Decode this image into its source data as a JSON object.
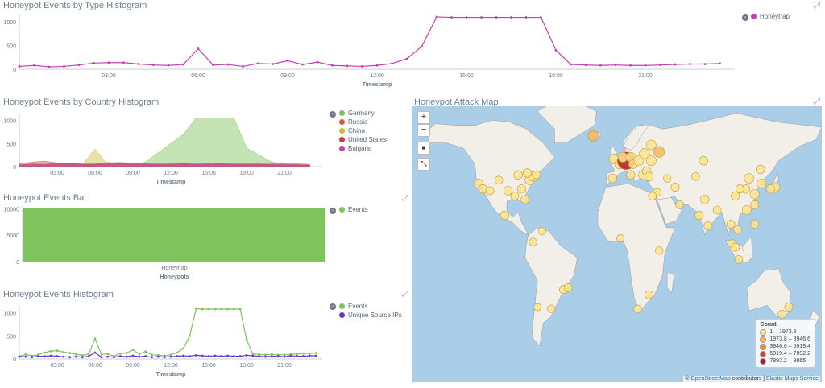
{
  "panels": {
    "type_histogram": {
      "title": "Honeypot Events by Type Histogram",
      "xlabel": "Timestamp",
      "legend": [
        {
          "label": "Honeytrap",
          "color": "#c341b1"
        }
      ]
    },
    "country_histogram": {
      "title": "Honeypot Events by Country Histogram",
      "xlabel": "Timestamp",
      "legend": [
        {
          "label": "Germany",
          "color": "#7fc35c"
        },
        {
          "label": "Russia",
          "color": "#c8633c"
        },
        {
          "label": "China",
          "color": "#c9be3c"
        },
        {
          "label": "United States",
          "color": "#c43c4a"
        },
        {
          "label": "Bulgaria",
          "color": "#c63fa6"
        }
      ]
    },
    "events_bar": {
      "title": "Honeypot Events Bar",
      "xlabel": "Honeypots",
      "category": "Honeytrap",
      "legend": [
        {
          "label": "Events",
          "color": "#7fc35c"
        }
      ]
    },
    "events_histogram": {
      "title": "Honeypot Events Histogram",
      "xlabel": "Timestamp",
      "legend": [
        {
          "label": "Events",
          "color": "#7fc35c"
        },
        {
          "label": "Unique Source IPs",
          "color": "#6b38c5"
        }
      ]
    },
    "attack_map": {
      "title": "Honeypot Attack Map",
      "controls": {
        "zoom_in": "+",
        "zoom_out": "−",
        "draw_rect": "■",
        "fit": "⤡"
      },
      "legend_title": "Count",
      "legend": [
        {
          "label": "1 – 1973.8",
          "color": "#fde58e"
        },
        {
          "label": "1973.8 – 3946.6",
          "color": "#f7b95b"
        },
        {
          "label": "3946.6 – 5919.4",
          "color": "#ef8a3b"
        },
        {
          "label": "5919.4 – 7892.2",
          "color": "#d9432a"
        },
        {
          "label": "7892.2 – 9865",
          "color": "#b01a1a"
        }
      ],
      "attribution": {
        "prefix": "©",
        "osm": "OpenStreetMap",
        "middle": " contributors | ",
        "ems": "Elastic Maps Service"
      }
    }
  },
  "chart_data": [
    {
      "type": "line",
      "title": "Honeypot Events by Type Histogram",
      "xlabel": "Timestamp",
      "ylabel": "",
      "xticks": [
        "03:00",
        "06:00",
        "09:00",
        "12:00",
        "15:00",
        "18:00",
        "21:00"
      ],
      "yticks": [
        0,
        500,
        1000
      ],
      "ylim": [
        0,
        1150
      ],
      "x_hours": [
        0,
        0.5,
        1,
        1.5,
        2,
        2.5,
        3,
        3.5,
        4,
        4.5,
        5,
        5.5,
        6,
        6.5,
        7,
        7.5,
        8,
        8.5,
        9,
        9.5,
        10,
        10.5,
        11,
        11.5,
        12,
        12.5,
        13,
        13.5,
        14,
        14.5,
        15,
        15.5,
        16,
        16.5,
        17,
        17.5,
        18,
        18.5,
        19,
        19.5,
        20,
        20.5,
        21,
        21.5,
        22,
        22.5,
        23,
        23.5
      ],
      "series": [
        {
          "name": "Honeytrap",
          "color": "#c341b1",
          "values": [
            60,
            80,
            50,
            60,
            90,
            130,
            140,
            140,
            110,
            90,
            80,
            100,
            430,
            90,
            100,
            60,
            120,
            110,
            180,
            100,
            150,
            80,
            70,
            60,
            80,
            120,
            220,
            480,
            1100,
            1090,
            1090,
            1090,
            1090,
            1090,
            1090,
            1090,
            400,
            100,
            90,
            80,
            90,
            80,
            80,
            90,
            100,
            110,
            110,
            120
          ]
        }
      ]
    },
    {
      "type": "area",
      "title": "Honeypot Events by Country Histogram",
      "xlabel": "Timestamp",
      "xticks": [
        "03:00",
        "06:00",
        "09:00",
        "12:00",
        "15:00",
        "18:00",
        "21:00"
      ],
      "yticks": [
        0,
        500,
        1000
      ],
      "ylim": [
        0,
        1150
      ],
      "x_hours": [
        0,
        1,
        2,
        3,
        4,
        5,
        6,
        7,
        8,
        9,
        10,
        11,
        12,
        13,
        14,
        15,
        16,
        17,
        18,
        19,
        20,
        21,
        22,
        23
      ],
      "series": [
        {
          "name": "Germany",
          "color": "#7fc35c",
          "values": [
            20,
            20,
            30,
            40,
            40,
            50,
            60,
            50,
            40,
            40,
            100,
            300,
            500,
            700,
            1050,
            1050,
            1050,
            1050,
            400,
            250,
            100,
            50,
            20,
            20
          ]
        },
        {
          "name": "Russia",
          "color": "#c8633c",
          "values": [
            60,
            100,
            120,
            80,
            60,
            70,
            60,
            80,
            90,
            70,
            80,
            60,
            50,
            60,
            70,
            80,
            60,
            70,
            60,
            50,
            60,
            70,
            60,
            50
          ]
        },
        {
          "name": "China",
          "color": "#c9be3c",
          "values": [
            10,
            10,
            10,
            10,
            20,
            40,
            380,
            30,
            20,
            20,
            10,
            10,
            10,
            10,
            10,
            10,
            10,
            10,
            10,
            10,
            10,
            10,
            10,
            10
          ]
        },
        {
          "name": "United States",
          "color": "#c43c4a",
          "values": [
            30,
            40,
            50,
            60,
            80,
            40,
            50,
            90,
            60,
            80,
            40,
            50,
            60,
            70,
            40,
            50,
            60,
            40,
            50,
            60,
            40,
            30,
            40,
            30
          ]
        },
        {
          "name": "Bulgaria",
          "color": "#c63fa6",
          "values": [
            40,
            60,
            50,
            70,
            60,
            50,
            40,
            60,
            70,
            50,
            60,
            40,
            30,
            40,
            50,
            60,
            40,
            50,
            40,
            30,
            40,
            50,
            40,
            30
          ]
        }
      ]
    },
    {
      "type": "bar",
      "title": "Honeypot Events Bar",
      "xlabel": "Honeypots",
      "categories": [
        "Honeytrap"
      ],
      "yticks": [
        0,
        5000,
        10000
      ],
      "ylim": [
        0,
        10500
      ],
      "series": [
        {
          "name": "Events",
          "color": "#7fc35c",
          "values": [
            10200
          ]
        }
      ]
    },
    {
      "type": "line",
      "title": "Honeypot Events Histogram",
      "xlabel": "Timestamp",
      "xticks": [
        "03:00",
        "06:00",
        "09:00",
        "12:00",
        "15:00",
        "18:00",
        "21:00"
      ],
      "yticks": [
        0,
        500,
        1000
      ],
      "ylim": [
        0,
        1150
      ],
      "x_hours": [
        0,
        0.5,
        1,
        1.5,
        2,
        2.5,
        3,
        3.5,
        4,
        4.5,
        5,
        5.5,
        6,
        6.5,
        7,
        7.5,
        8,
        8.5,
        9,
        9.5,
        10,
        10.5,
        11,
        11.5,
        12,
        12.5,
        13,
        13.5,
        14,
        14.5,
        15,
        15.5,
        16,
        16.5,
        17,
        17.5,
        18,
        18.5,
        19,
        19.5,
        20,
        20.5,
        21,
        21.5,
        22,
        22.5,
        23,
        23.5
      ],
      "series": [
        {
          "name": "Events",
          "color": "#7fc35c",
          "values": [
            60,
            100,
            70,
            90,
            140,
            170,
            180,
            150,
            130,
            100,
            80,
            110,
            440,
            100,
            110,
            60,
            120,
            130,
            200,
            110,
            160,
            90,
            80,
            70,
            90,
            140,
            230,
            500,
            1090,
            1080,
            1080,
            1080,
            1080,
            1080,
            1080,
            1080,
            420,
            110,
            100,
            90,
            100,
            90,
            90,
            100,
            110,
            120,
            120,
            130
          ]
        },
        {
          "name": "Unique Source IPs",
          "color": "#6b38c5",
          "values": [
            50,
            50,
            40,
            60,
            60,
            70,
            60,
            50,
            40,
            50,
            40,
            60,
            140,
            40,
            50,
            40,
            60,
            50,
            70,
            50,
            60,
            40,
            50,
            40,
            50,
            60,
            70,
            60,
            80,
            70,
            60,
            70,
            60,
            70,
            60,
            60,
            80,
            70,
            60,
            50,
            60,
            60,
            50,
            70,
            60,
            60,
            70,
            70
          ]
        }
      ]
    }
  ],
  "map_points": [
    {
      "lon": -122,
      "lat": 37,
      "count": 1200
    },
    {
      "lon": -118,
      "lat": 34,
      "count": 900
    },
    {
      "lon": -112,
      "lat": 33,
      "count": 700
    },
    {
      "lon": -104,
      "lat": 39,
      "count": 600
    },
    {
      "lon": -96,
      "lat": 33,
      "count": 900
    },
    {
      "lon": -90,
      "lat": 30,
      "count": 700
    },
    {
      "lon": -87,
      "lat": 42,
      "count": 900
    },
    {
      "lon": -84,
      "lat": 34,
      "count": 800
    },
    {
      "lon": -81,
      "lat": 28,
      "count": 600
    },
    {
      "lon": -77,
      "lat": 39,
      "count": 1100
    },
    {
      "lon": -74,
      "lat": 41,
      "count": 1100
    },
    {
      "lon": -71,
      "lat": 42,
      "count": 700
    },
    {
      "lon": -79,
      "lat": 43,
      "count": 800
    },
    {
      "lon": -99,
      "lat": 19,
      "count": 800
    },
    {
      "lon": -74,
      "lat": 4,
      "count": 500
    },
    {
      "lon": -66,
      "lat": 10,
      "count": 500
    },
    {
      "lon": -47,
      "lat": -23,
      "count": 800
    },
    {
      "lon": -43,
      "lat": -22,
      "count": 600
    },
    {
      "lon": -58,
      "lat": -34,
      "count": 500
    },
    {
      "lon": -70,
      "lat": -33,
      "count": 400
    },
    {
      "lon": -21,
      "lat": 64,
      "count": 2100
    },
    {
      "lon": -3,
      "lat": 51,
      "count": 1300
    },
    {
      "lon": 2,
      "lat": 48,
      "count": 1200
    },
    {
      "lon": 8,
      "lat": 50,
      "count": 9865
    },
    {
      "lon": 5,
      "lat": 52,
      "count": 1500
    },
    {
      "lon": 12,
      "lat": 52,
      "count": 1400
    },
    {
      "lon": 14,
      "lat": 48,
      "count": 900
    },
    {
      "lon": 19,
      "lat": 50,
      "count": 1600
    },
    {
      "lon": 24,
      "lat": 54,
      "count": 1700
    },
    {
      "lon": 30,
      "lat": 59,
      "count": 1400
    },
    {
      "lon": 37,
      "lat": 55,
      "count": 2100
    },
    {
      "lon": 30,
      "lat": 50,
      "count": 1500
    },
    {
      "lon": 23,
      "lat": 42,
      "count": 1400
    },
    {
      "lon": 26,
      "lat": 44,
      "count": 1000
    },
    {
      "lon": 28,
      "lat": 41,
      "count": 900
    },
    {
      "lon": -4,
      "lat": 40,
      "count": 900
    },
    {
      "lon": 12,
      "lat": 42,
      "count": 800
    },
    {
      "lon": 35,
      "lat": 32,
      "count": 600
    },
    {
      "lon": 44,
      "lat": 40,
      "count": 500
    },
    {
      "lon": 51,
      "lat": 35,
      "count": 700
    },
    {
      "lon": 55,
      "lat": 25,
      "count": 600
    },
    {
      "lon": 69,
      "lat": 41,
      "count": 600
    },
    {
      "lon": 77,
      "lat": 28,
      "count": 900
    },
    {
      "lon": 72,
      "lat": 19,
      "count": 800
    },
    {
      "lon": 80,
      "lat": 13,
      "count": 700
    },
    {
      "lon": 88,
      "lat": 22,
      "count": 600
    },
    {
      "lon": 76,
      "lat": 50,
      "count": 900
    },
    {
      "lon": 100,
      "lat": 14,
      "count": 700
    },
    {
      "lon": 106,
      "lat": 11,
      "count": 600
    },
    {
      "lon": 101,
      "lat": 3,
      "count": 600
    },
    {
      "lon": 104,
      "lat": 1,
      "count": 700
    },
    {
      "lon": 107,
      "lat": -6,
      "count": 600
    },
    {
      "lon": 114,
      "lat": 22,
      "count": 1100
    },
    {
      "lon": 121,
      "lat": 31,
      "count": 1200
    },
    {
      "lon": 116,
      "lat": 40,
      "count": 1300
    },
    {
      "lon": 113,
      "lat": 34,
      "count": 900
    },
    {
      "lon": 104,
      "lat": 30,
      "count": 800
    },
    {
      "lon": 108,
      "lat": 34,
      "count": 700
    },
    {
      "lon": 121,
      "lat": 25,
      "count": 700
    },
    {
      "lon": 127,
      "lat": 37,
      "count": 1100
    },
    {
      "lon": 126,
      "lat": 45,
      "count": 800
    },
    {
      "lon": 139,
      "lat": 35,
      "count": 1200
    },
    {
      "lon": 135,
      "lat": 34,
      "count": 800
    },
    {
      "lon": 121,
      "lat": 14,
      "count": 600
    },
    {
      "lon": 151,
      "lat": -33,
      "count": 700
    },
    {
      "lon": 145,
      "lat": -37,
      "count": 600
    },
    {
      "lon": 28,
      "lat": -26,
      "count": 600
    },
    {
      "lon": 18,
      "lat": -34,
      "count": 500
    },
    {
      "lon": 3,
      "lat": 6,
      "count": 500
    },
    {
      "lon": 37,
      "lat": -1,
      "count": 500
    },
    {
      "lon": 31,
      "lat": 30,
      "count": 600
    }
  ]
}
